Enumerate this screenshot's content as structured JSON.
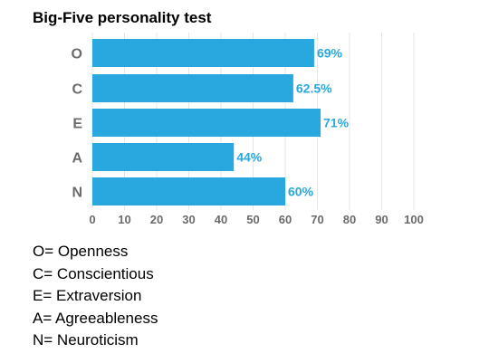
{
  "chart_data": {
    "type": "bar",
    "orientation": "horizontal",
    "title": "Big-Five personality test",
    "categories": [
      "O",
      "C",
      "E",
      "A",
      "N"
    ],
    "values": [
      69,
      62.5,
      71,
      44,
      60
    ],
    "value_labels": [
      "69%",
      "62.5%",
      "71%",
      "44%",
      "60%"
    ],
    "xlim": [
      0,
      100
    ],
    "xticks": [
      0,
      10,
      20,
      30,
      40,
      50,
      60,
      70,
      80,
      90,
      100
    ],
    "grid": true,
    "bar_color": "#29a8e0",
    "label_color": "#29a8e0",
    "tick_color": "#6b6b6b"
  },
  "legend": [
    "O= Openness",
    "C= Conscientious",
    "E= Extraversion",
    "A= Agreeableness",
    "N= Neuroticism"
  ]
}
